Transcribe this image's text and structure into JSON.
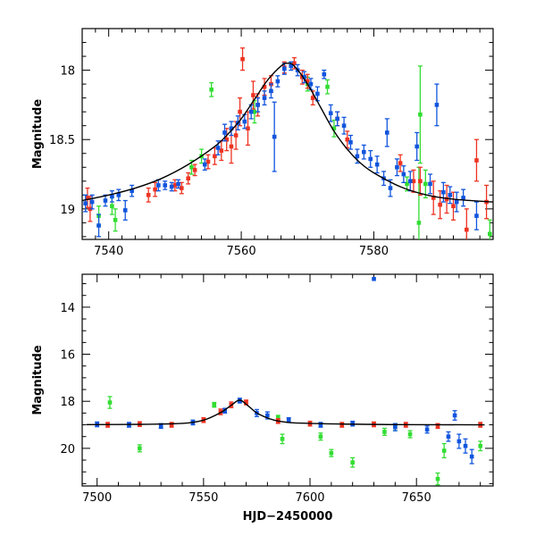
{
  "colors": {
    "blue": "#1155dd",
    "red": "#ee3322",
    "green": "#33dd33",
    "curve": "#000000"
  },
  "chart_data": [
    {
      "type": "scatter",
      "title": "",
      "xlabel": "",
      "ylabel": "Magnitude",
      "xlim": [
        7536,
        7598
      ],
      "ylim": [
        19.22,
        17.7
      ],
      "y_inverted": true,
      "xticks": [
        7540,
        7560,
        7580
      ],
      "yticks": [
        18,
        18.5,
        19
      ],
      "xtick_labels": [
        "7540",
        "7560",
        "7580"
      ],
      "ytick_labels": [
        "18",
        "18.5",
        "19"
      ],
      "grid": false,
      "model_curve": {
        "x": [
          7536,
          7540,
          7544,
          7548,
          7552,
          7556,
          7558,
          7560,
          7562,
          7564,
          7566,
          7567,
          7568,
          7570,
          7572,
          7574,
          7576,
          7578,
          7580,
          7584,
          7588,
          7592,
          7598
        ],
        "y": [
          18.94,
          18.9,
          18.85,
          18.78,
          18.68,
          18.55,
          18.46,
          18.35,
          18.21,
          18.07,
          17.97,
          17.95,
          17.97,
          18.1,
          18.27,
          18.44,
          18.57,
          18.67,
          18.74,
          18.84,
          18.9,
          18.93,
          18.95
        ]
      },
      "series": [
        {
          "color": "blue",
          "points": [
            {
              "x": 7536.5,
              "y": 18.96,
              "err": 0.06
            },
            {
              "x": 7537.5,
              "y": 18.95,
              "err": 0.05
            },
            {
              "x": 7538.5,
              "y": 19.12,
              "err": 0.08
            },
            {
              "x": 7539.5,
              "y": 18.94,
              "err": 0.04
            },
            {
              "x": 7540.5,
              "y": 18.91,
              "err": 0.04
            },
            {
              "x": 7541.5,
              "y": 18.9,
              "err": 0.04
            },
            {
              "x": 7542.5,
              "y": 19.01,
              "err": 0.07
            },
            {
              "x": 7543.5,
              "y": 18.87,
              "err": 0.04
            },
            {
              "x": 7547.5,
              "y": 18.83,
              "err": 0.04
            },
            {
              "x": 7548.5,
              "y": 18.83,
              "err": 0.03
            },
            {
              "x": 7549.5,
              "y": 18.84,
              "err": 0.03
            },
            {
              "x": 7550.5,
              "y": 18.82,
              "err": 0.03
            },
            {
              "x": 7554.5,
              "y": 18.68,
              "err": 0.04
            },
            {
              "x": 7556.5,
              "y": 18.56,
              "err": 0.05
            },
            {
              "x": 7557.5,
              "y": 18.45,
              "err": 0.06
            },
            {
              "x": 7558.5,
              "y": 18.42,
              "err": 0.05
            },
            {
              "x": 7559.5,
              "y": 18.38,
              "err": 0.05
            },
            {
              "x": 7560.5,
              "y": 18.37,
              "err": 0.05
            },
            {
              "x": 7561.5,
              "y": 18.3,
              "err": 0.05
            },
            {
              "x": 7562.5,
              "y": 18.25,
              "err": 0.05
            },
            {
              "x": 7563.5,
              "y": 18.2,
              "err": 0.05
            },
            {
              "x": 7564.5,
              "y": 18.15,
              "err": 0.05
            },
            {
              "x": 7565,
              "y": 18.48,
              "err": 0.25
            },
            {
              "x": 7565.5,
              "y": 18.08,
              "err": 0.04
            },
            {
              "x": 7566.5,
              "y": 17.99,
              "err": 0.04
            },
            {
              "x": 7567.5,
              "y": 17.97,
              "err": 0.03
            },
            {
              "x": 7568.5,
              "y": 18.0,
              "err": 0.04
            },
            {
              "x": 7569.5,
              "y": 18.05,
              "err": 0.04
            },
            {
              "x": 7570.5,
              "y": 18.1,
              "err": 0.04
            },
            {
              "x": 7571.5,
              "y": 18.17,
              "err": 0.05
            },
            {
              "x": 7572.5,
              "y": 18.03,
              "err": 0.03
            },
            {
              "x": 7573.5,
              "y": 18.31,
              "err": 0.06
            },
            {
              "x": 7574.5,
              "y": 18.35,
              "err": 0.05
            },
            {
              "x": 7575.5,
              "y": 18.4,
              "err": 0.06
            },
            {
              "x": 7576.5,
              "y": 18.52,
              "err": 0.05
            },
            {
              "x": 7577.5,
              "y": 18.62,
              "err": 0.05
            },
            {
              "x": 7578.5,
              "y": 18.59,
              "err": 0.05
            },
            {
              "x": 7579.5,
              "y": 18.64,
              "err": 0.06
            },
            {
              "x": 7580.5,
              "y": 18.68,
              "err": 0.06
            },
            {
              "x": 7581.5,
              "y": 18.78,
              "err": 0.05
            },
            {
              "x": 7582,
              "y": 18.45,
              "err": 0.1
            },
            {
              "x": 7582.5,
              "y": 18.85,
              "err": 0.06
            },
            {
              "x": 7583.5,
              "y": 18.7,
              "err": 0.06
            },
            {
              "x": 7584.5,
              "y": 18.75,
              "err": 0.06
            },
            {
              "x": 7585.5,
              "y": 18.8,
              "err": 0.07
            },
            {
              "x": 7586.5,
              "y": 18.55,
              "err": 0.1
            },
            {
              "x": 7588.5,
              "y": 18.82,
              "err": 0.07
            },
            {
              "x": 7589.5,
              "y": 18.25,
              "err": 0.15
            },
            {
              "x": 7590.5,
              "y": 18.88,
              "err": 0.07
            },
            {
              "x": 7591.5,
              "y": 18.9,
              "err": 0.06
            },
            {
              "x": 7592.5,
              "y": 18.95,
              "err": 0.07
            },
            {
              "x": 7593.5,
              "y": 18.92,
              "err": 0.06
            },
            {
              "x": 7595.5,
              "y": 19.05,
              "err": 0.1
            }
          ]
        },
        {
          "color": "red",
          "points": [
            {
              "x": 7536.8,
              "y": 18.92,
              "err": 0.07
            },
            {
              "x": 7537.2,
              "y": 19.0,
              "err": 0.09
            },
            {
              "x": 7546,
              "y": 18.9,
              "err": 0.05
            },
            {
              "x": 7547,
              "y": 18.86,
              "err": 0.05
            },
            {
              "x": 7550,
              "y": 18.83,
              "err": 0.04
            },
            {
              "x": 7551,
              "y": 18.85,
              "err": 0.04
            },
            {
              "x": 7552,
              "y": 18.78,
              "err": 0.04
            },
            {
              "x": 7553,
              "y": 18.72,
              "err": 0.04
            },
            {
              "x": 7555,
              "y": 18.66,
              "err": 0.05
            },
            {
              "x": 7556,
              "y": 18.62,
              "err": 0.06
            },
            {
              "x": 7557,
              "y": 18.58,
              "err": 0.07
            },
            {
              "x": 7557.8,
              "y": 18.5,
              "err": 0.08
            },
            {
              "x": 7558.5,
              "y": 18.55,
              "err": 0.12
            },
            {
              "x": 7559.2,
              "y": 18.47,
              "err": 0.1
            },
            {
              "x": 7559.8,
              "y": 18.3,
              "err": 0.1
            },
            {
              "x": 7560.2,
              "y": 17.92,
              "err": 0.08
            },
            {
              "x": 7561,
              "y": 18.42,
              "err": 0.12
            },
            {
              "x": 7561.8,
              "y": 18.18,
              "err": 0.1
            },
            {
              "x": 7562.5,
              "y": 18.25,
              "err": 0.08
            },
            {
              "x": 7563.5,
              "y": 18.12,
              "err": 0.06
            },
            {
              "x": 7564.5,
              "y": 18.1,
              "err": 0.06
            },
            {
              "x": 7566.5,
              "y": 17.98,
              "err": 0.04
            },
            {
              "x": 7568,
              "y": 17.95,
              "err": 0.04
            },
            {
              "x": 7569.2,
              "y": 18.05,
              "err": 0.05
            },
            {
              "x": 7570,
              "y": 18.08,
              "err": 0.05
            },
            {
              "x": 7570.8,
              "y": 18.2,
              "err": 0.05
            },
            {
              "x": 7574.5,
              "y": 18.35,
              "err": 0.05
            },
            {
              "x": 7576,
              "y": 18.5,
              "err": 0.06
            },
            {
              "x": 7584,
              "y": 18.67,
              "err": 0.06
            },
            {
              "x": 7586,
              "y": 18.8,
              "err": 0.08
            },
            {
              "x": 7587,
              "y": 18.8,
              "err": 0.1
            },
            {
              "x": 7589,
              "y": 18.92,
              "err": 0.12
            },
            {
              "x": 7590,
              "y": 18.97,
              "err": 0.1
            },
            {
              "x": 7591,
              "y": 18.93,
              "err": 0.1
            },
            {
              "x": 7592,
              "y": 18.98,
              "err": 0.1
            },
            {
              "x": 7594,
              "y": 19.15,
              "err": 0.15
            },
            {
              "x": 7595.5,
              "y": 18.65,
              "err": 0.15
            },
            {
              "x": 7597,
              "y": 18.95,
              "err": 0.12
            }
          ]
        },
        {
          "color": "green",
          "points": [
            {
              "x": 7538.5,
              "y": 19.05,
              "err": 0.07
            },
            {
              "x": 7540.5,
              "y": 18.98,
              "err": 0.06
            },
            {
              "x": 7541,
              "y": 19.08,
              "err": 0.08
            },
            {
              "x": 7552.5,
              "y": 18.7,
              "err": 0.05
            },
            {
              "x": 7554,
              "y": 18.62,
              "err": 0.05
            },
            {
              "x": 7555.5,
              "y": 18.14,
              "err": 0.05
            },
            {
              "x": 7562,
              "y": 18.3,
              "err": 0.08
            },
            {
              "x": 7570,
              "y": 18.1,
              "err": 0.05
            },
            {
              "x": 7573,
              "y": 18.12,
              "err": 0.05
            },
            {
              "x": 7574,
              "y": 18.42,
              "err": 0.06
            },
            {
              "x": 7585,
              "y": 18.82,
              "err": 0.05
            },
            {
              "x": 7586.8,
              "y": 19.1,
              "err": 0.4
            },
            {
              "x": 7587,
              "y": 18.32,
              "err": 0.35
            },
            {
              "x": 7587.8,
              "y": 18.82,
              "err": 0.1
            },
            {
              "x": 7597.5,
              "y": 19.18,
              "err": 0.1
            }
          ]
        }
      ]
    },
    {
      "type": "scatter",
      "title": "",
      "xlabel": "HJD−2450000",
      "ylabel": "Magnitude",
      "xlim": [
        7493,
        7686
      ],
      "ylim": [
        21.6,
        12.6
      ],
      "y_inverted": true,
      "xticks": [
        7500,
        7550,
        7600,
        7650
      ],
      "yticks": [
        14,
        16,
        18,
        20
      ],
      "xtick_labels": [
        "7500",
        "7550",
        "7600",
        "7650"
      ],
      "ytick_labels": [
        "14",
        "16",
        "18",
        "20"
      ],
      "grid": false,
      "model_curve": {
        "x": [
          7495,
          7520,
          7540,
          7550,
          7558,
          7563,
          7567,
          7571,
          7576,
          7585,
          7600,
          7640,
          7682
        ],
        "y": [
          18.99,
          18.98,
          18.94,
          18.8,
          18.48,
          18.17,
          17.95,
          18.2,
          18.55,
          18.84,
          18.94,
          18.99,
          19.0
        ]
      },
      "series": [
        {
          "color": "blue",
          "points": [
            {
              "x": 7630,
              "y": 12.8,
              "err": 0.0
            },
            {
              "x": 7500,
              "y": 18.98,
              "err": 0.1
            },
            {
              "x": 7515,
              "y": 19.0,
              "err": 0.1
            },
            {
              "x": 7530,
              "y": 19.05,
              "err": 0.1
            },
            {
              "x": 7545,
              "y": 18.9,
              "err": 0.1
            },
            {
              "x": 7560,
              "y": 18.4,
              "err": 0.1
            },
            {
              "x": 7567,
              "y": 17.97,
              "err": 0.1
            },
            {
              "x": 7575,
              "y": 18.5,
              "err": 0.15
            },
            {
              "x": 7580,
              "y": 18.6,
              "err": 0.15
            },
            {
              "x": 7590,
              "y": 18.8,
              "err": 0.1
            },
            {
              "x": 7605,
              "y": 19.0,
              "err": 0.1
            },
            {
              "x": 7620,
              "y": 18.95,
              "err": 0.1
            },
            {
              "x": 7640,
              "y": 19.1,
              "err": 0.15
            },
            {
              "x": 7655,
              "y": 19.2,
              "err": 0.15
            },
            {
              "x": 7665,
              "y": 19.5,
              "err": 0.2
            },
            {
              "x": 7670,
              "y": 19.7,
              "err": 0.3
            },
            {
              "x": 7673,
              "y": 19.9,
              "err": 0.3
            },
            {
              "x": 7676,
              "y": 20.35,
              "err": 0.3
            },
            {
              "x": 7668,
              "y": 18.6,
              "err": 0.2
            }
          ]
        },
        {
          "color": "red",
          "points": [
            {
              "x": 7505,
              "y": 19.0,
              "err": 0.1
            },
            {
              "x": 7520,
              "y": 18.97,
              "err": 0.1
            },
            {
              "x": 7535,
              "y": 19.0,
              "err": 0.1
            },
            {
              "x": 7550,
              "y": 18.8,
              "err": 0.1
            },
            {
              "x": 7558,
              "y": 18.45,
              "err": 0.12
            },
            {
              "x": 7563,
              "y": 18.15,
              "err": 0.12
            },
            {
              "x": 7570,
              "y": 18.05,
              "err": 0.1
            },
            {
              "x": 7585,
              "y": 18.84,
              "err": 0.1
            },
            {
              "x": 7600,
              "y": 18.95,
              "err": 0.1
            },
            {
              "x": 7615,
              "y": 19.0,
              "err": 0.1
            },
            {
              "x": 7630,
              "y": 18.98,
              "err": 0.1
            },
            {
              "x": 7645,
              "y": 19.0,
              "err": 0.1
            },
            {
              "x": 7660,
              "y": 19.05,
              "err": 0.1
            },
            {
              "x": 7680,
              "y": 19.0,
              "err": 0.1
            }
          ]
        },
        {
          "color": "green",
          "points": [
            {
              "x": 7506,
              "y": 18.05,
              "err": 0.25
            },
            {
              "x": 7520,
              "y": 20.0,
              "err": 0.15
            },
            {
              "x": 7555,
              "y": 18.15,
              "err": 0.1
            },
            {
              "x": 7585,
              "y": 18.7,
              "err": 0.1
            },
            {
              "x": 7587,
              "y": 19.6,
              "err": 0.2
            },
            {
              "x": 7605,
              "y": 19.5,
              "err": 0.15
            },
            {
              "x": 7610,
              "y": 20.2,
              "err": 0.15
            },
            {
              "x": 7620,
              "y": 20.6,
              "err": 0.2
            },
            {
              "x": 7635,
              "y": 19.3,
              "err": 0.15
            },
            {
              "x": 7640,
              "y": 19.1,
              "err": 0.15
            },
            {
              "x": 7647,
              "y": 19.4,
              "err": 0.15
            },
            {
              "x": 7660,
              "y": 21.3,
              "err": 0.25
            },
            {
              "x": 7663,
              "y": 20.1,
              "err": 0.3
            },
            {
              "x": 7680,
              "y": 19.9,
              "err": 0.2
            }
          ]
        }
      ]
    }
  ]
}
